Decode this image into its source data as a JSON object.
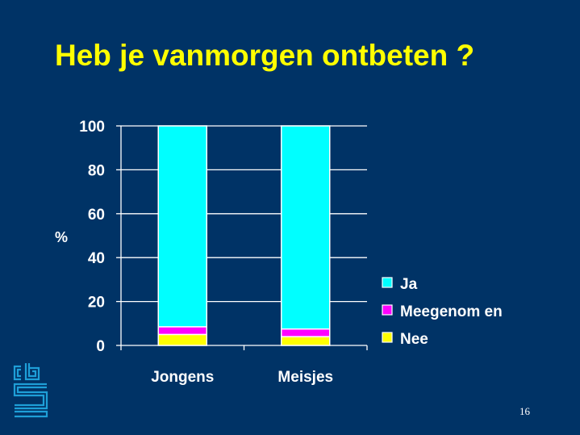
{
  "slide": {
    "title": "Heb je vanmorgen ontbeten ?",
    "page_number": "16"
  },
  "colors": {
    "background": "#003366",
    "title": "#ffff00",
    "text": "#ffffff",
    "logo": "#1e9fd8"
  },
  "chart_data": {
    "type": "bar",
    "stacked": true,
    "categories": [
      "Jongens",
      "Meisjes"
    ],
    "series": [
      {
        "name": "Nee",
        "color": "#ffff00",
        "values": [
          5,
          4
        ]
      },
      {
        "name": "Meegenom en",
        "color": "#ff00ff",
        "values": [
          3.5,
          3.5
        ]
      },
      {
        "name": "Ja",
        "color": "#00ffff",
        "values": [
          91.5,
          92.5
        ]
      }
    ],
    "ylabel": "%",
    "ylim": [
      0,
      100
    ],
    "yticks": [
      "0",
      "20",
      "40",
      "60",
      "80",
      "100"
    ],
    "grid": true,
    "legend_position": "right",
    "legend_order": [
      "Ja",
      "Meegenom en",
      "Nee"
    ]
  }
}
